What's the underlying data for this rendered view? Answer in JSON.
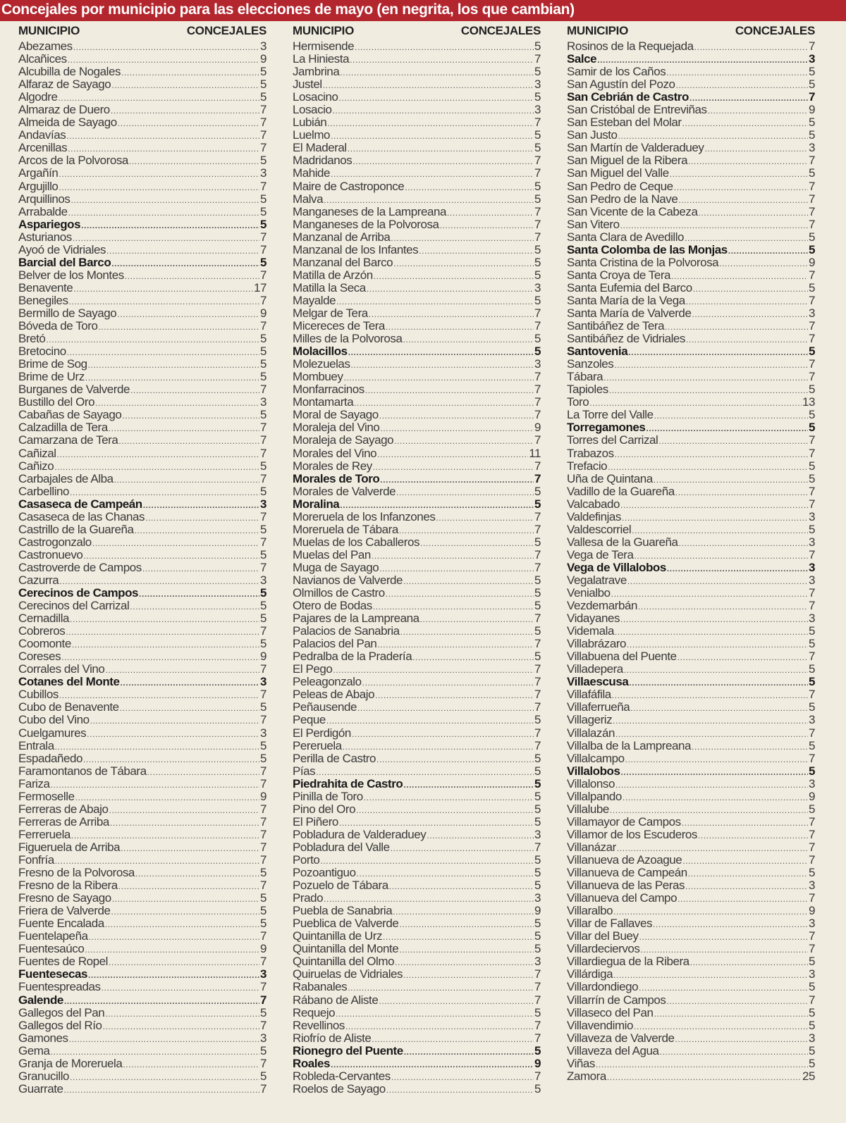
{
  "title": "Concejales por municipio para las elecciones de mayo (en negrita, los que cambian)",
  "colors": {
    "title_bar": "#b3262e",
    "background": "#f1ece0"
  },
  "headers": {
    "municipio": "MUNICIPIO",
    "concejales": "CONCEJALES"
  },
  "columns": [
    [
      {
        "n": "Abezames",
        "v": "3"
      },
      {
        "n": "Alcañices",
        "v": "9"
      },
      {
        "n": "Alcubilla de Nogales",
        "v": "5"
      },
      {
        "n": "Alfaraz de Sayago",
        "v": "5"
      },
      {
        "n": "Algodre",
        "v": "5"
      },
      {
        "n": "Almaraz de Duero",
        "v": "7"
      },
      {
        "n": "Almeida de Sayago",
        "v": "7"
      },
      {
        "n": "Andavías",
        "v": "7"
      },
      {
        "n": "Arcenillas",
        "v": "7"
      },
      {
        "n": "Arcos de la Polvorosa",
        "v": "5"
      },
      {
        "n": "Argañín",
        "v": "3"
      },
      {
        "n": "Argujillo",
        "v": "7"
      },
      {
        "n": "Arquillinos",
        "v": "5"
      },
      {
        "n": "Arrabalde",
        "v": "5"
      },
      {
        "n": "Aspariegos",
        "v": "5",
        "b": true
      },
      {
        "n": "Asturianos",
        "v": "7"
      },
      {
        "n": "Ayoó de Vidriales",
        "v": "7"
      },
      {
        "n": "Barcial del Barco",
        "v": "5",
        "b": true
      },
      {
        "n": "Belver de los Montes",
        "v": "7"
      },
      {
        "n": "Benavente",
        "v": "17"
      },
      {
        "n": "Benegiles",
        "v": "7"
      },
      {
        "n": "Bermillo de Sayago",
        "v": "9"
      },
      {
        "n": "Bóveda de Toro",
        "v": "7"
      },
      {
        "n": "Bretó",
        "v": "5"
      },
      {
        "n": "Bretocino",
        "v": "5"
      },
      {
        "n": "Brime de Sog",
        "v": "5"
      },
      {
        "n": "Brime de Urz",
        "v": "5"
      },
      {
        "n": "Burganes de Valverde",
        "v": "7"
      },
      {
        "n": "Bustillo del Oro",
        "v": "3"
      },
      {
        "n": "Cabañas de Sayago",
        "v": "5"
      },
      {
        "n": "Calzadilla de Tera",
        "v": "7"
      },
      {
        "n": "Camarzana de Tera",
        "v": "7"
      },
      {
        "n": "Cañizal",
        "v": "7"
      },
      {
        "n": "Cañizo",
        "v": "5"
      },
      {
        "n": "Carbajales de Alba",
        "v": "7"
      },
      {
        "n": "Carbellino",
        "v": "5"
      },
      {
        "n": "Casaseca de Campeán",
        "v": "3",
        "b": true
      },
      {
        "n": "Casaseca de las Chanas",
        "v": "7"
      },
      {
        "n": "Castrillo de la Guareña",
        "v": "5"
      },
      {
        "n": "Castrogonzalo",
        "v": "7"
      },
      {
        "n": "Castronuevo",
        "v": "5"
      },
      {
        "n": "Castroverde de Campos",
        "v": "7"
      },
      {
        "n": "Cazurra",
        "v": "3"
      },
      {
        "n": "Cerecinos de Campos",
        "v": "5",
        "b": true
      },
      {
        "n": "Cerecinos del Carrizal",
        "v": "5"
      },
      {
        "n": "Cernadilla",
        "v": "5"
      },
      {
        "n": "Cobreros",
        "v": "7"
      },
      {
        "n": "Coomonte",
        "v": "5"
      },
      {
        "n": "Coreses",
        "v": "9"
      },
      {
        "n": "Corrales del Vino",
        "v": "7"
      },
      {
        "n": "Cotanes del Monte",
        "v": "3",
        "b": true
      },
      {
        "n": "Cubillos",
        "v": "7"
      },
      {
        "n": "Cubo de Benavente",
        "v": "5"
      },
      {
        "n": "Cubo del Vino",
        "v": "7"
      },
      {
        "n": "Cuelgamures",
        "v": "3"
      },
      {
        "n": "Entrala",
        "v": "5"
      },
      {
        "n": "Espadañedo",
        "v": "5"
      },
      {
        "n": "Faramontanos de Tábara",
        "v": "7"
      },
      {
        "n": "Fariza",
        "v": "7"
      },
      {
        "n": "Fermoselle",
        "v": "9"
      },
      {
        "n": "Ferreras de Abajo",
        "v": "7"
      },
      {
        "n": "Ferreras de Arriba",
        "v": "7"
      },
      {
        "n": "Ferreruela",
        "v": "7"
      },
      {
        "n": "Figueruela de Arriba",
        "v": "7"
      },
      {
        "n": "Fonfría",
        "v": "7"
      },
      {
        "n": "Fresno de la Polvorosa",
        "v": "5"
      },
      {
        "n": "Fresno de la Ribera",
        "v": "7"
      },
      {
        "n": "Fresno de Sayago",
        "v": "5"
      },
      {
        "n": "Friera de Valverde",
        "v": "5"
      },
      {
        "n": "Fuente Encalada",
        "v": "5"
      },
      {
        "n": "Fuentelapeña",
        "v": "7"
      },
      {
        "n": "Fuentesaúco",
        "v": "9"
      },
      {
        "n": "Fuentes de Ropel",
        "v": "7"
      },
      {
        "n": "Fuentesecas",
        "v": "3",
        "b": true
      },
      {
        "n": "Fuentespreadas",
        "v": "7"
      },
      {
        "n": "Galende",
        "v": "7",
        "b": true
      },
      {
        "n": "Gallegos del Pan",
        "v": "5"
      },
      {
        "n": "Gallegos del Río",
        "v": "7"
      },
      {
        "n": "Gamones",
        "v": "3"
      },
      {
        "n": "Gema",
        "v": "5"
      },
      {
        "n": "Granja de Moreruela",
        "v": "7"
      },
      {
        "n": "Granucillo",
        "v": "5"
      },
      {
        "n": "Guarrate",
        "v": "7"
      }
    ],
    [
      {
        "n": "Hermisende",
        "v": "5"
      },
      {
        "n": "La Hiniesta",
        "v": "7"
      },
      {
        "n": "Jambrina",
        "v": "5"
      },
      {
        "n": "Justel",
        "v": "3"
      },
      {
        "n": "Losacino",
        "v": "5"
      },
      {
        "n": "Losacio",
        "v": "3"
      },
      {
        "n": "Lubián",
        "v": "7"
      },
      {
        "n": "Luelmo",
        "v": "5"
      },
      {
        "n": "El Maderal",
        "v": "5"
      },
      {
        "n": "Madridanos",
        "v": "7"
      },
      {
        "n": "Mahide",
        "v": "7"
      },
      {
        "n": "Maire de Castroponce",
        "v": "5"
      },
      {
        "n": "Malva",
        "v": "5"
      },
      {
        "n": "Manganeses de la Lampreana",
        "v": "7"
      },
      {
        "n": "Manganeses de la Polvorosa",
        "v": "7"
      },
      {
        "n": "Manzanal de Arriba",
        "v": "7"
      },
      {
        "n": "Manzanal de los Infantes",
        "v": "5"
      },
      {
        "n": "Manzanal del Barco",
        "v": "5"
      },
      {
        "n": "Matilla de Arzón",
        "v": "5"
      },
      {
        "n": "Matilla la Seca",
        "v": "3"
      },
      {
        "n": "Mayalde",
        "v": "5"
      },
      {
        "n": "Melgar de Tera",
        "v": "7"
      },
      {
        "n": "Micereces de Tera",
        "v": "7"
      },
      {
        "n": "Milles de la Polvorosa",
        "v": "5"
      },
      {
        "n": "Molacillos",
        "v": "5",
        "b": true
      },
      {
        "n": "Molezuelas",
        "v": "3"
      },
      {
        "n": "Mombuey",
        "v": "7"
      },
      {
        "n": "Monfarracinos",
        "v": "7"
      },
      {
        "n": "Montamarta",
        "v": "7"
      },
      {
        "n": "Moral de Sayago",
        "v": "7"
      },
      {
        "n": "Moraleja del Vino",
        "v": "9"
      },
      {
        "n": "Moraleja de Sayago",
        "v": "7"
      },
      {
        "n": "Morales del Vino",
        "v": "11"
      },
      {
        "n": "Morales de Rey",
        "v": "7"
      },
      {
        "n": "Morales de Toro",
        "v": "7",
        "b": true
      },
      {
        "n": "Morales de Valverde",
        "v": "5"
      },
      {
        "n": "Moralina",
        "v": "5",
        "b": true
      },
      {
        "n": "Moreruela de los Infanzones",
        "v": "7"
      },
      {
        "n": "Moreruela de Tábara",
        "v": "7"
      },
      {
        "n": "Muelas de los Caballeros",
        "v": "5"
      },
      {
        "n": "Muelas del Pan",
        "v": "7"
      },
      {
        "n": "Muga de Sayago",
        "v": "7"
      },
      {
        "n": "Navianos de Valverde",
        "v": "5"
      },
      {
        "n": "Olmillos de Castro",
        "v": "5"
      },
      {
        "n": "Otero de Bodas",
        "v": "5"
      },
      {
        "n": "Pajares de la Lampreana",
        "v": "7"
      },
      {
        "n": "Palacios de Sanabria",
        "v": "5"
      },
      {
        "n": "Palacios del Pan",
        "v": "7"
      },
      {
        "n": "Pedralba de la Pradería",
        "v": "5"
      },
      {
        "n": "El Pego",
        "v": "7"
      },
      {
        "n": "Peleagonzalo",
        "v": "7"
      },
      {
        "n": "Peleas de Abajo",
        "v": "7"
      },
      {
        "n": "Peñausende",
        "v": "7"
      },
      {
        "n": "Peque",
        "v": "5"
      },
      {
        "n": "El Perdigón",
        "v": "7"
      },
      {
        "n": "Pereruela",
        "v": "7"
      },
      {
        "n": "Perilla de Castro",
        "v": "5"
      },
      {
        "n": "Pías",
        "v": "5"
      },
      {
        "n": "Piedrahita de Castro",
        "v": "5",
        "b": true
      },
      {
        "n": "Pinilla de Toro",
        "v": "5"
      },
      {
        "n": "Pino del Oro",
        "v": "5"
      },
      {
        "n": "El Piñero",
        "v": "5"
      },
      {
        "n": "Pobladura de Valderaduey",
        "v": "3"
      },
      {
        "n": "Pobladura del Valle",
        "v": "7"
      },
      {
        "n": "Porto",
        "v": "5"
      },
      {
        "n": "Pozoantiguo",
        "v": "5"
      },
      {
        "n": "Pozuelo de Tábara",
        "v": "5"
      },
      {
        "n": "Prado",
        "v": "3"
      },
      {
        "n": "Puebla de Sanabria",
        "v": "9"
      },
      {
        "n": "Pueblica de Valverde",
        "v": "5"
      },
      {
        "n": "Quintanilla de Urz",
        "v": "5"
      },
      {
        "n": "Quintanilla del Monte",
        "v": "5"
      },
      {
        "n": "Quintanilla del Olmo",
        "v": "3"
      },
      {
        "n": "Quiruelas de Vidriales",
        "v": "7"
      },
      {
        "n": "Rabanales",
        "v": "7"
      },
      {
        "n": "Rábano de Aliste",
        "v": "7"
      },
      {
        "n": "Requejo",
        "v": "5"
      },
      {
        "n": "Revellinos",
        "v": "7"
      },
      {
        "n": "Riofrío de Aliste",
        "v": "7"
      },
      {
        "n": "Rionegro del Puente",
        "v": "5",
        "b": true
      },
      {
        "n": "Roales",
        "v": "9",
        "b": true
      },
      {
        "n": "Robleda-Cervantes",
        "v": "7"
      },
      {
        "n": "Roelos de Sayago",
        "v": "5"
      }
    ],
    [
      {
        "n": "Rosinos de la Requejada",
        "v": "7"
      },
      {
        "n": "Salce",
        "v": "3",
        "b": true
      },
      {
        "n": "Samir de los Caños",
        "v": "5"
      },
      {
        "n": "San Agustín del Pozo",
        "v": "5"
      },
      {
        "n": "San Cebrián de Castro",
        "v": "7",
        "b": true
      },
      {
        "n": "San Cristóbal de Entreviñas",
        "v": "9"
      },
      {
        "n": "San Esteban del Molar",
        "v": "5"
      },
      {
        "n": "San Justo",
        "v": "5"
      },
      {
        "n": "San Martín de Valderaduey",
        "v": "3"
      },
      {
        "n": "San Miguel de la Ribera",
        "v": "7"
      },
      {
        "n": "San Miguel del Valle",
        "v": "5"
      },
      {
        "n": "San Pedro de Ceque",
        "v": "7"
      },
      {
        "n": "San Pedro de la Nave",
        "v": "7"
      },
      {
        "n": "San Vicente de la Cabeza",
        "v": "7"
      },
      {
        "n": "San Vitero",
        "v": "7"
      },
      {
        "n": "Santa Clara de Avedillo",
        "v": "5"
      },
      {
        "n": "Santa Colomba de las Monjas",
        "v": "5",
        "b": true
      },
      {
        "n": "Santa Cristina de la Polvorosa",
        "v": "9"
      },
      {
        "n": "Santa Croya de Tera",
        "v": "7"
      },
      {
        "n": "Santa Eufemia del Barco",
        "v": "5"
      },
      {
        "n": "Santa María de la Vega",
        "v": "7"
      },
      {
        "n": "Santa María de Valverde",
        "v": "3"
      },
      {
        "n": "Santibáñez de Tera",
        "v": "7"
      },
      {
        "n": "Santibáñez de Vidriales",
        "v": "7"
      },
      {
        "n": "Santovenia",
        "v": "5",
        "b": true
      },
      {
        "n": "Sanzoles",
        "v": "7"
      },
      {
        "n": "Tábara",
        "v": "7"
      },
      {
        "n": "Tapioles",
        "v": "5"
      },
      {
        "n": "Toro",
        "v": "13"
      },
      {
        "n": "La Torre del Valle",
        "v": "5"
      },
      {
        "n": "Torregamones",
        "v": "5",
        "b": true
      },
      {
        "n": "Torres del Carrizal",
        "v": "7"
      },
      {
        "n": "Trabazos",
        "v": "7"
      },
      {
        "n": "Trefacio",
        "v": "5"
      },
      {
        "n": "Uña de Quintana",
        "v": "5"
      },
      {
        "n": "Vadillo de la Guareña",
        "v": "7"
      },
      {
        "n": "Valcabado",
        "v": "7"
      },
      {
        "n": "Valdefinjas",
        "v": "3"
      },
      {
        "n": "Valdescorriel",
        "v": "5"
      },
      {
        "n": "Vallesa de la Guareña",
        "v": "3"
      },
      {
        "n": "Vega de Tera",
        "v": "7"
      },
      {
        "n": "Vega de Villalobos",
        "v": "3",
        "b": true
      },
      {
        "n": "Vegalatrave",
        "v": "3"
      },
      {
        "n": "Venialbo",
        "v": "7"
      },
      {
        "n": "Vezdemarbán",
        "v": "7"
      },
      {
        "n": "Vidayanes",
        "v": "3"
      },
      {
        "n": "Videmala",
        "v": "5"
      },
      {
        "n": "Villabrázaro",
        "v": "5"
      },
      {
        "n": "Villabuena del Puente",
        "v": "7"
      },
      {
        "n": "Villadepera",
        "v": "5"
      },
      {
        "n": "Villaescusa",
        "v": "5",
        "b": true
      },
      {
        "n": "Villafáfila",
        "v": "7"
      },
      {
        "n": "Villaferrueña",
        "v": "5"
      },
      {
        "n": "Villageriz",
        "v": "3"
      },
      {
        "n": "Villalazán",
        "v": "7"
      },
      {
        "n": "Villalba de la Lampreana",
        "v": "5"
      },
      {
        "n": "Villalcampo",
        "v": "7"
      },
      {
        "n": "Villalobos",
        "v": "5",
        "b": true
      },
      {
        "n": "Villalonso",
        "v": "3"
      },
      {
        "n": "Villalpando",
        "v": "9"
      },
      {
        "n": "Villalube",
        "v": "5"
      },
      {
        "n": "Villamayor de Campos",
        "v": "7"
      },
      {
        "n": "Villamor de los Escuderos",
        "v": "7"
      },
      {
        "n": "Villanázar",
        "v": "7"
      },
      {
        "n": "Villanueva de Azoague",
        "v": "7"
      },
      {
        "n": "Villanueva de Campeán",
        "v": "5"
      },
      {
        "n": "Villanueva de las Peras",
        "v": "3"
      },
      {
        "n": "Villanueva del Campo",
        "v": "7"
      },
      {
        "n": "Villaralbo",
        "v": "9"
      },
      {
        "n": "Villar de Fallaves",
        "v": "3"
      },
      {
        "n": "Villar del Buey",
        "v": "7"
      },
      {
        "n": "Villardeciervos",
        "v": "7"
      },
      {
        "n": "Villardiegua de la Ribera",
        "v": "5"
      },
      {
        "n": "Villárdiga",
        "v": "3"
      },
      {
        "n": "Villardondiego",
        "v": "5"
      },
      {
        "n": "Villarrín de Campos",
        "v": "7"
      },
      {
        "n": "Villaseco del Pan",
        "v": "5"
      },
      {
        "n": "Villavendimio",
        "v": "5"
      },
      {
        "n": "Villaveza de Valverde",
        "v": "3"
      },
      {
        "n": "Villaveza del Agua",
        "v": "5"
      },
      {
        "n": "Viñas",
        "v": "5"
      },
      {
        "n": "Zamora",
        "v": "25"
      }
    ]
  ]
}
